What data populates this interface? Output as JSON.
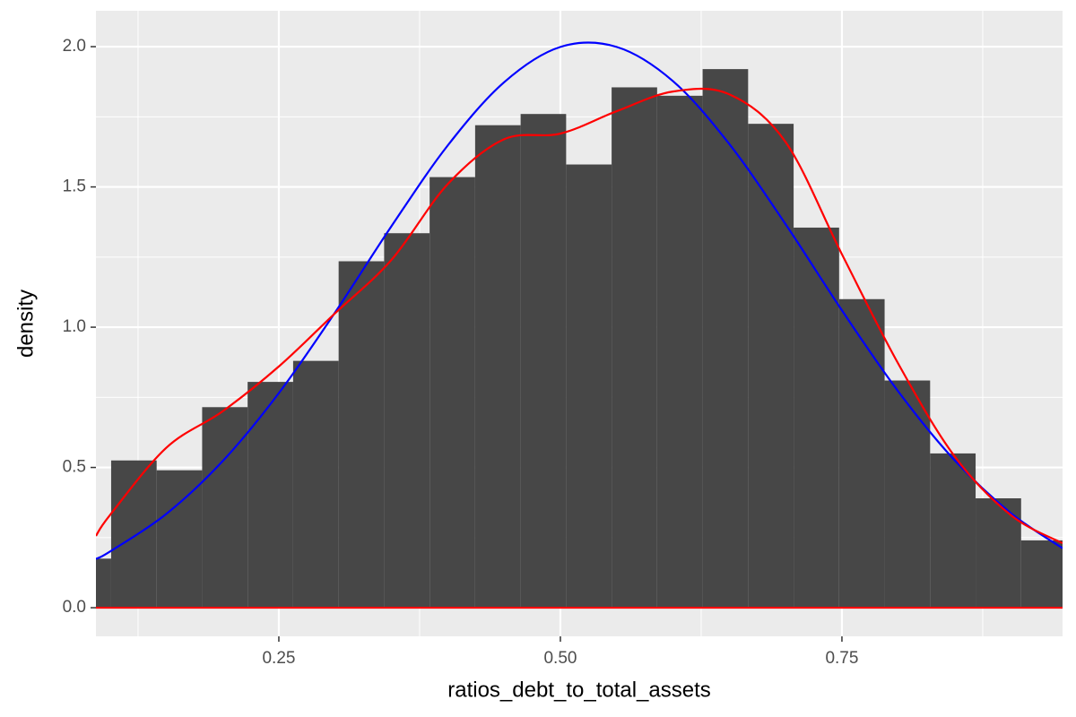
{
  "chart_data": {
    "type": "histogram",
    "x_label": "ratios_debt_to_total_assets",
    "y_label": "density",
    "bins": [
      0.0607,
      0.1011,
      0.1415,
      0.1819,
      0.2223,
      0.2627,
      0.3031,
      0.3435,
      0.3839,
      0.4243,
      0.4647,
      0.5051,
      0.5455,
      0.5859,
      0.6263,
      0.6667,
      0.7071,
      0.7475,
      0.7879,
      0.8283,
      0.8687,
      0.9091,
      0.9495
    ],
    "values": [
      0.175,
      0.525,
      0.49,
      0.715,
      0.805,
      0.88,
      1.235,
      1.335,
      1.535,
      1.72,
      1.76,
      1.58,
      1.855,
      1.825,
      1.92,
      1.725,
      1.355,
      1.1,
      0.81,
      0.55,
      0.39,
      0.24
    ],
    "color": "#474747",
    "series": [
      {
        "color": "#0000ff",
        "x": [
          0.0876,
          0.1,
          0.15,
          0.2,
          0.25,
          0.3,
          0.35,
          0.4,
          0.45,
          0.5,
          0.55,
          0.6,
          0.65,
          0.7,
          0.75,
          0.8,
          0.85,
          0.9,
          0.9459
        ],
        "values": [
          0.174,
          0.2,
          0.334,
          0.522,
          0.765,
          1.053,
          1.36,
          1.648,
          1.873,
          1.999,
          1.999,
          1.877,
          1.653,
          1.367,
          1.06,
          0.771,
          0.526,
          0.337,
          0.212
        ]
      },
      {
        "color": "#ff0000",
        "x": [
          0.0876,
          0.1,
          0.15,
          0.2,
          0.25,
          0.3,
          0.35,
          0.4,
          0.45,
          0.5,
          0.55,
          0.6,
          0.65,
          0.7,
          0.75,
          0.8,
          0.85,
          0.9,
          0.9459
        ],
        "values": [
          0.256,
          0.33,
          0.57,
          0.7,
          0.86,
          1.05,
          1.24,
          1.51,
          1.67,
          1.69,
          1.77,
          1.84,
          1.83,
          1.66,
          1.26,
          0.87,
          0.54,
          0.33,
          0.23
        ]
      }
    ],
    "baseline_color": "#ff0000",
    "xlim": [
      0.0876,
      0.9459
    ],
    "ylim": [
      -0.102,
      2.128
    ],
    "xticks": [
      0.25,
      {
        "value": 0.5,
        "label": "0.50"
      },
      {
        "value": 0.75,
        "label": "0.75"
      }
    ],
    "yticks": [
      {
        "value": 0,
        "label": "0.0"
      },
      {
        "value": 0.5,
        "label": "0.5"
      },
      {
        "value": 1,
        "label": "1.0"
      },
      {
        "value": 1.5,
        "label": "1.5"
      },
      {
        "value": 2,
        "label": "2.0"
      }
    ],
    "grid": true,
    "background": "#ebebeb"
  }
}
